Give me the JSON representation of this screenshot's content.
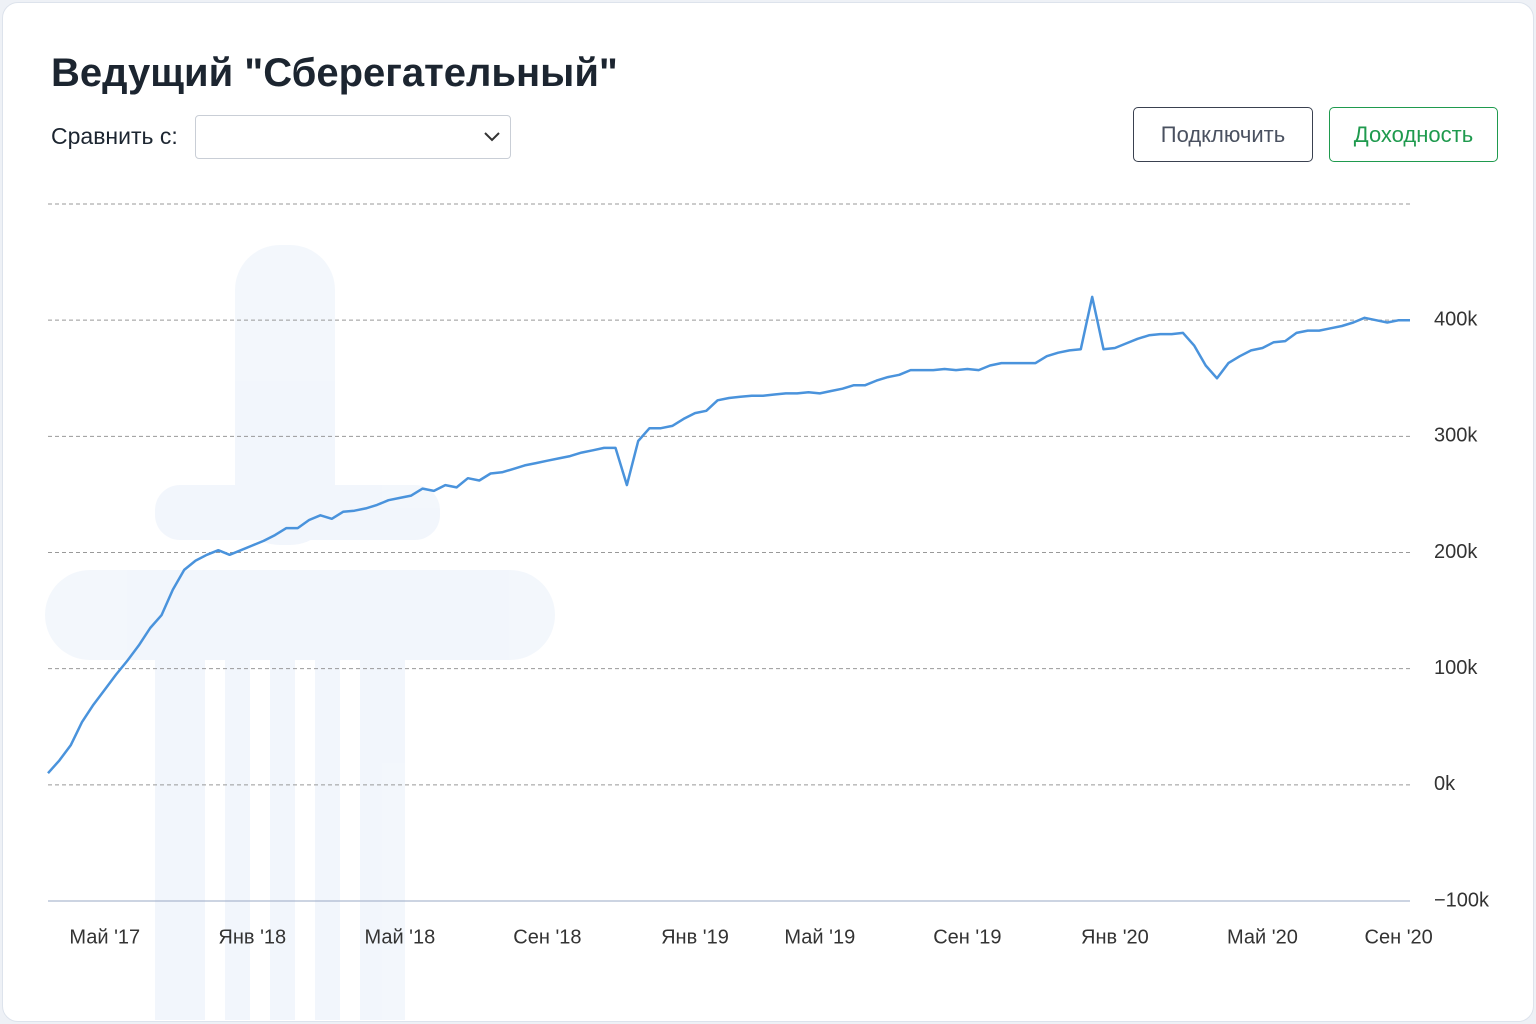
{
  "controls": {
    "compare_label": "Сравнить с:",
    "connect_button": "Подключить",
    "yield_button": "Доходность"
  },
  "chart_data": {
    "type": "line",
    "title": "Ведущий \"Сберегательный\"",
    "color": "#4a93dc",
    "grid": true,
    "categories": [
      null,
      null,
      null,
      null,
      null,
      "Май '17",
      null,
      null,
      null,
      null,
      null,
      null,
      null,
      null,
      null,
      null,
      null,
      null,
      "Янв '18",
      null,
      null,
      null,
      null,
      null,
      null,
      null,
      null,
      null,
      null,
      null,
      null,
      "Май '18",
      null,
      null,
      null,
      null,
      null,
      null,
      null,
      null,
      null,
      null,
      null,
      null,
      "Сен '18",
      null,
      null,
      null,
      null,
      null,
      null,
      null,
      null,
      null,
      null,
      null,
      null,
      "Янв '19",
      null,
      null,
      null,
      null,
      null,
      null,
      null,
      null,
      null,
      null,
      "Май '19",
      null,
      null,
      null,
      null,
      null,
      null,
      null,
      null,
      null,
      null,
      null,
      null,
      "Сен '19",
      null,
      null,
      null,
      null,
      null,
      null,
      null,
      null,
      null,
      null,
      null,
      null,
      "Янв '20",
      null,
      null,
      null,
      null,
      null,
      null,
      null,
      null,
      null,
      null,
      null,
      null,
      "Май '20",
      null,
      null,
      null,
      null,
      null,
      null,
      null,
      null,
      null,
      null,
      null,
      "Сен '20",
      null
    ],
    "values": [
      10000,
      21000,
      34000,
      54000,
      69000,
      82000,
      95000,
      107000,
      120000,
      135000,
      146000,
      168000,
      185000,
      193000,
      198000,
      202000,
      198000,
      202000,
      206000,
      210000,
      215000,
      221000,
      221000,
      228000,
      232000,
      229000,
      235000,
      236000,
      238000,
      241000,
      245000,
      247000,
      249000,
      255000,
      253000,
      258000,
      256000,
      264000,
      262000,
      268000,
      269000,
      272000,
      275000,
      277000,
      279000,
      281000,
      283000,
      286000,
      288000,
      290000,
      290000,
      258000,
      296000,
      307000,
      307000,
      309000,
      315000,
      320000,
      322000,
      331000,
      333000,
      334000,
      335000,
      335000,
      336000,
      337000,
      337000,
      338000,
      337000,
      339000,
      341000,
      344000,
      344000,
      348000,
      351000,
      353000,
      357000,
      357000,
      357000,
      358000,
      357000,
      358000,
      357000,
      361000,
      363000,
      363000,
      363000,
      363000,
      369000,
      372000,
      374000,
      375000,
      420000,
      375000,
      376000,
      380000,
      384000,
      387000,
      388000,
      388000,
      389000,
      378000,
      361000,
      350000,
      363000,
      369000,
      374000,
      376000,
      381000,
      382000,
      389000,
      391000,
      391000,
      393000,
      395000,
      398000,
      402000,
      400000,
      398000,
      400000,
      400000
    ],
    "ylim": [
      -100000,
      500000
    ],
    "yticks": [
      {
        "value": -100000,
        "label": "−100k"
      },
      {
        "value": 0,
        "label": "0k"
      },
      {
        "value": 100000,
        "label": "100k"
      },
      {
        "value": 200000,
        "label": "200k"
      },
      {
        "value": 300000,
        "label": "300k"
      },
      {
        "value": 400000,
        "label": "400k"
      }
    ]
  }
}
